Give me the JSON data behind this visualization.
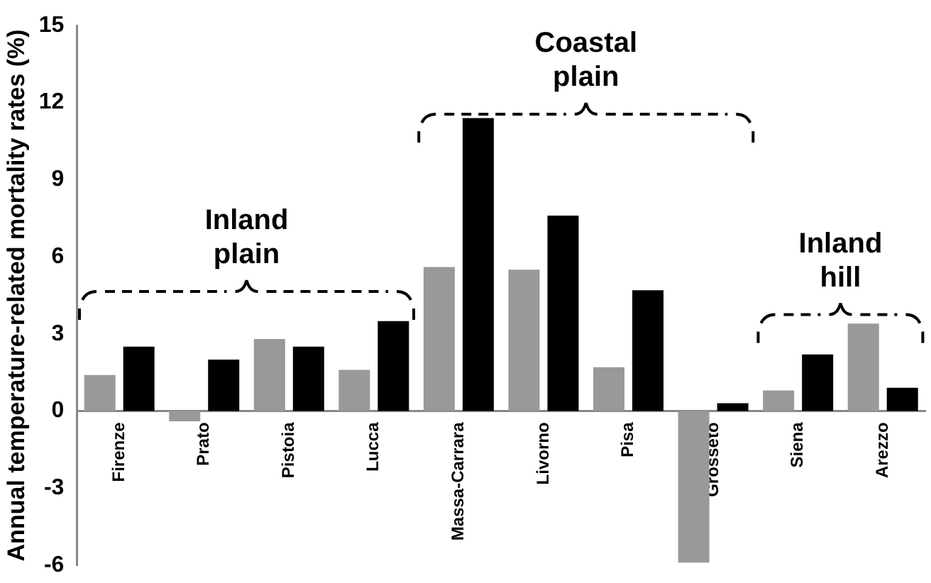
{
  "chart_data": {
    "type": "bar",
    "ylabel": "Annual temperature-related mortality rates (%)",
    "categories": [
      "Firenze",
      "Prato",
      "Pistoia",
      "Lucca",
      "Massa-Carrara",
      "Livorno",
      "Pisa",
      "Grosseto",
      "Siena",
      "Arezzo"
    ],
    "series": [
      {
        "color": "#999999",
        "values": [
          1.4,
          -0.4,
          2.8,
          1.6,
          5.6,
          5.5,
          1.7,
          -5.9,
          0.8,
          3.4
        ]
      },
      {
        "color": "#000000",
        "values": [
          2.5,
          2.0,
          2.5,
          3.5,
          11.4,
          7.6,
          4.7,
          0.3,
          2.2,
          0.9
        ]
      }
    ],
    "ylim": [
      -6,
      15
    ],
    "yticks": [
      -6,
      -3,
      0,
      3,
      6,
      9,
      12,
      15
    ],
    "grid": false,
    "legend": false,
    "annotations": [
      "Inland plain",
      "Coastal plain",
      "Inland hill"
    ]
  }
}
